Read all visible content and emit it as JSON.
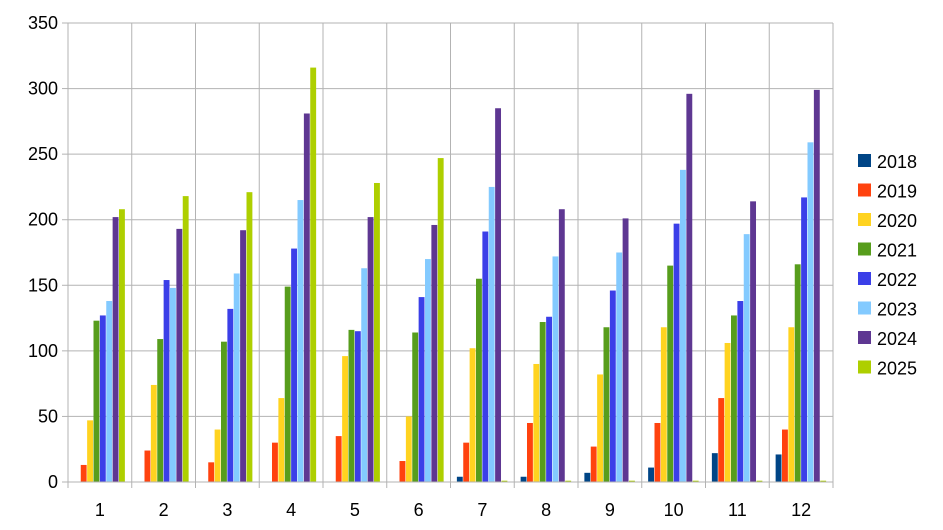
{
  "chart_data": {
    "type": "bar",
    "title": "",
    "xlabel": "",
    "ylabel": "",
    "categories": [
      "1",
      "2",
      "3",
      "4",
      "5",
      "6",
      "7",
      "8",
      "9",
      "10",
      "11",
      "12"
    ],
    "ylim": [
      0,
      350
    ],
    "y_ticks": [
      0,
      50,
      100,
      150,
      200,
      250,
      300,
      350
    ],
    "y_tick_labels": [
      "0",
      "50",
      "100",
      "150",
      "200",
      "250",
      "300",
      "350"
    ],
    "grid": true,
    "legend_position": "right",
    "series": [
      {
        "name": "2018",
        "color": "#004586",
        "values": [
          0,
          0,
          0,
          0,
          0,
          0,
          4,
          4,
          7,
          11,
          22,
          21
        ]
      },
      {
        "name": "2019",
        "color": "#ff420e",
        "values": [
          13,
          24,
          15,
          30,
          35,
          16,
          30,
          45,
          27,
          45,
          64,
          40
        ]
      },
      {
        "name": "2020",
        "color": "#ffd320",
        "values": [
          47,
          74,
          40,
          64,
          96,
          50,
          102,
          90,
          82,
          118,
          106,
          118
        ]
      },
      {
        "name": "2021",
        "color": "#579d1c",
        "values": [
          123,
          109,
          107,
          149,
          116,
          114,
          155,
          122,
          118,
          165,
          127,
          166
        ]
      },
      {
        "name": "2022",
        "color": "#3b3fe8",
        "values": [
          127,
          154,
          132,
          178,
          115,
          141,
          191,
          126,
          146,
          197,
          138,
          217
        ]
      },
      {
        "name": "2023",
        "color": "#83caff",
        "values": [
          138,
          148,
          159,
          215,
          163,
          170,
          225,
          172,
          175,
          238,
          189,
          259
        ]
      },
      {
        "name": "2024",
        "color": "#5e3792",
        "values": [
          202,
          193,
          192,
          281,
          202,
          196,
          285,
          208,
          201,
          296,
          214,
          299
        ]
      },
      {
        "name": "2025",
        "color": "#aecf00",
        "values": [
          208,
          218,
          221,
          316,
          228,
          247,
          1,
          1,
          1,
          1,
          1,
          1
        ]
      }
    ]
  }
}
